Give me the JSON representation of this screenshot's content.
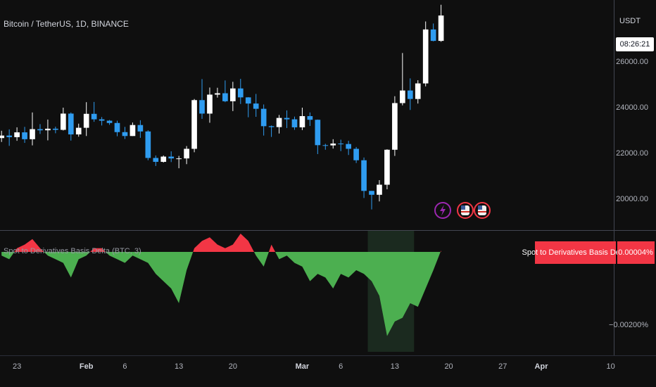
{
  "chart_data": [
    {
      "type": "candlestick",
      "title": "Bitcoin / TetherUS, 1D, BINANCE",
      "currency": "USDT",
      "countdown": "08:26:21",
      "up_color": "#ffffff",
      "down_color": "#2f9cf0",
      "x": [
        21,
        22,
        23,
        24,
        25,
        26,
        27,
        28,
        29,
        30,
        31,
        32,
        33,
        34,
        35,
        36,
        37,
        38,
        39,
        40,
        41,
        42,
        43,
        44,
        45,
        46,
        47,
        48,
        49,
        50,
        51,
        52,
        53,
        54,
        55,
        56,
        57,
        58,
        59,
        60,
        61,
        62,
        63,
        64,
        65,
        66,
        67,
        68,
        69,
        70,
        71,
        72,
        73,
        74,
        75,
        76,
        77,
        78
      ],
      "open": [
        22670,
        22780,
        22710,
        22920,
        22620,
        23060,
        23010,
        23080,
        23030,
        23740,
        22830,
        23120,
        23730,
        23490,
        23430,
        23330,
        22930,
        22760,
        23240,
        22960,
        21800,
        21630,
        21860,
        21780,
        21780,
        22200,
        24330,
        23740,
        24570,
        24630,
        24280,
        24840,
        24450,
        24180,
        23950,
        23190,
        23150,
        23550,
        23490,
        23140,
        23630,
        23470,
        22360,
        22350,
        22430,
        22410,
        22200,
        21700,
        20360,
        20190,
        20630,
        22160,
        24200,
        24750,
        24380,
        25060,
        27420,
        26920
      ],
      "high": [
        22990,
        23050,
        23140,
        23160,
        23790,
        23280,
        23480,
        23170,
        24000,
        23790,
        23300,
        24240,
        24250,
        23590,
        23460,
        23430,
        23160,
        23350,
        23450,
        23010,
        21910,
        21910,
        22090,
        21890,
        22320,
        24380,
        25250,
        24880,
        24870,
        25190,
        25130,
        25260,
        24460,
        24600,
        24140,
        23220,
        23680,
        23880,
        23610,
        24000,
        23790,
        23480,
        22420,
        22620,
        22600,
        22550,
        22280,
        21820,
        20360,
        20830,
        22180,
        24500,
        26390,
        25280,
        25200,
        27770,
        27680,
        28500
      ],
      "low": [
        22500,
        22330,
        22550,
        22460,
        22350,
        22850,
        22570,
        22880,
        23000,
        22560,
        22730,
        22760,
        23380,
        23220,
        23250,
        22750,
        22630,
        22760,
        22680,
        21700,
        21450,
        21600,
        21620,
        21350,
        21530,
        22050,
        23510,
        23340,
        24440,
        24240,
        23850,
        24160,
        23580,
        23600,
        22780,
        22720,
        22870,
        23110,
        23030,
        23020,
        23200,
        21970,
        22160,
        22210,
        22100,
        21930,
        21580,
        20050,
        19550,
        19900,
        20430,
        21890,
        24100,
        23900,
        24180,
        24930,
        26900,
        26880
      ],
      "close": [
        22780,
        22710,
        22920,
        22620,
        23060,
        23010,
        23080,
        23030,
        23740,
        22830,
        23120,
        23730,
        23490,
        23430,
        23330,
        22930,
        22760,
        23240,
        22960,
        21800,
        21630,
        21860,
        21780,
        21780,
        22200,
        24330,
        23740,
        24570,
        24630,
        24280,
        24840,
        24450,
        24180,
        23950,
        23190,
        23150,
        23550,
        23490,
        23140,
        23630,
        23470,
        22360,
        22350,
        22430,
        22410,
        22200,
        21700,
        20360,
        20190,
        20630,
        22160,
        24200,
        24750,
        24380,
        25060,
        27420,
        26920,
        28030
      ],
      "xlim": [
        20.8,
        100.4
      ],
      "xticks": [
        23,
        {
          "value": 32,
          "label": "Feb"
        },
        {
          "value": 37,
          "label": "6"
        },
        {
          "value": 44,
          "label": "13"
        },
        {
          "value": 51,
          "label": "20"
        },
        {
          "value": 60,
          "label": "Mar"
        },
        {
          "value": 65,
          "label": "6"
        },
        {
          "value": 72,
          "label": "13"
        },
        {
          "value": 79,
          "label": "20"
        },
        {
          "value": 86,
          "label": "27"
        },
        {
          "value": 91,
          "label": "Apr"
        },
        {
          "value": 100,
          "label": "10"
        }
      ],
      "ylim": [
        18615,
        28708
      ],
      "yticks": [
        {
          "value": 20000,
          "label": "20000.00"
        },
        {
          "value": 22000,
          "label": "22000.00"
        },
        {
          "value": 24000,
          "label": "24000.00"
        },
        {
          "value": 26000,
          "label": "26000.00"
        }
      ]
    },
    {
      "type": "area",
      "title": "Spot to Derivatives Basis Delta (BTC, 3)",
      "series_name": "Spot to Derivatives Basis Delta",
      "positive_color": "#f23645",
      "negative_color": "#4caf50",
      "x": [
        21,
        22,
        23,
        24,
        25,
        26,
        27,
        28,
        29,
        30,
        31,
        32,
        33,
        34,
        35,
        36,
        37,
        38,
        39,
        40,
        41,
        42,
        43,
        44,
        45,
        46,
        47,
        48,
        49,
        50,
        51,
        52,
        53,
        54,
        55,
        56,
        57,
        58,
        59,
        60,
        61,
        62,
        63,
        64,
        65,
        66,
        67,
        68,
        69,
        70,
        71,
        72,
        73,
        74,
        75,
        76,
        77,
        78
      ],
      "values": [
        -0.0001,
        -0.0002,
        0.0001,
        0.0002,
        0.00035,
        0.0001,
        -0.0001,
        -0.0002,
        -0.0003,
        -0.0007,
        -0.0002,
        -0.0001,
        0.0001,
        0.0001,
        -0.0001,
        -0.0002,
        -0.0003,
        -0.0001,
        -0.0002,
        -0.0003,
        -0.0006,
        -0.0008,
        -0.001,
        -0.0014,
        -0.0005,
        0.0001,
        0.0003,
        0.0004,
        0.0002,
        0.0001,
        0.0002,
        0.0005,
        0.0003,
        -0.0001,
        -0.0004,
        0.0002,
        -0.0002,
        -0.0001,
        -0.0003,
        -0.0004,
        -0.0008,
        -0.0006,
        -0.0007,
        -0.001,
        -0.0006,
        -0.0007,
        -0.0005,
        -0.0006,
        -0.0008,
        -0.0012,
        -0.0023,
        -0.0019,
        -0.0018,
        -0.0014,
        -0.0015,
        -0.001,
        -0.0005,
        4e-05
      ],
      "value_labels": [
        null,
        null,
        null,
        null,
        null,
        null,
        null,
        null,
        null,
        null,
        null,
        null,
        null,
        null,
        null,
        null,
        null,
        null,
        null,
        null,
        null,
        null,
        null,
        null,
        null,
        null,
        null,
        null,
        null,
        null,
        null,
        null,
        null,
        null,
        null,
        null,
        null,
        null,
        null,
        null,
        null,
        null,
        null,
        null,
        null,
        null,
        null,
        null,
        null,
        null,
        null,
        null,
        null,
        null,
        null,
        null,
        null,
        "0.00004%"
      ],
      "shaded_range": [
        68.5,
        74.5
      ],
      "ylim": [
        -0.00273,
        0.000577
      ],
      "yticks": [
        {
          "value": -0.002,
          "label": "−0.00200%"
        }
      ]
    }
  ]
}
